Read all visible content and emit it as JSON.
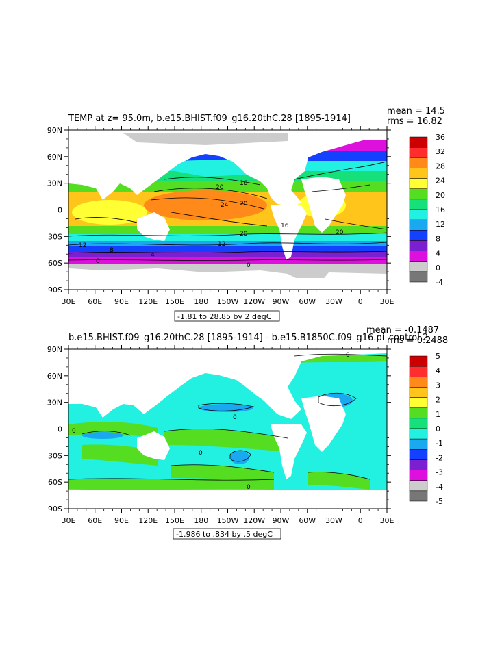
{
  "panels": [
    {
      "title": "TEMP at z=  95.0m, b.e15.BHIST.f09_g16.20thC.28 [1895-1914]",
      "mean_label": "mean = 14.5",
      "rms_label": "rms = 16.82",
      "range_label": "-1.81 to 28.85 by 2 degC",
      "contour_labels": [
        "20",
        "16",
        "24",
        "20",
        "16",
        "20",
        "20",
        "12",
        "12",
        "8",
        "4",
        "0",
        "0"
      ],
      "colorbar": {
        "labels": [
          "36",
          "32",
          "28",
          "24",
          "20",
          "16",
          "12",
          "8",
          "4",
          "0",
          "-4"
        ],
        "colors": [
          "#cc0000",
          "#ff2d2d",
          "#ff8a1a",
          "#ffc51a",
          "#ffff33",
          "#55dd22",
          "#16e07a",
          "#22f0e0",
          "#1aa8f0",
          "#1440ff",
          "#7a20d0",
          "#dd10dd",
          "#cccccc",
          "#777777"
        ]
      }
    },
    {
      "title": "b.e15.BHIST.f09_g16.20thC.28 [1895-1914] - b.e15.B1850C.f09_g16.pi_control.2",
      "mean_label": "mean = -0.1487",
      "rms_label": "rms = 0.2488",
      "range_label": "-1.986 to .834 by .5 degC",
      "contour_labels": [
        "0",
        "0",
        "0",
        "0",
        "0"
      ],
      "colorbar": {
        "labels": [
          "5",
          "4",
          "3",
          "2",
          "1",
          "0",
          "-1",
          "-2",
          "-3",
          "-4",
          "-5"
        ],
        "colors": [
          "#cc0000",
          "#ff2d2d",
          "#ff8a1a",
          "#ffc51a",
          "#ffff33",
          "#55dd22",
          "#16e07a",
          "#22f0e0",
          "#1aa8f0",
          "#1440ff",
          "#7a20d0",
          "#dd10dd",
          "#cccccc",
          "#777777"
        ]
      }
    }
  ],
  "axes": {
    "x_ticks": [
      "30E",
      "60E",
      "90E",
      "120E",
      "150E",
      "180",
      "150W",
      "120W",
      "90W",
      "60W",
      "30W",
      "0",
      "30E"
    ],
    "y_ticks": [
      "90N",
      "60N",
      "30N",
      "0",
      "30S",
      "60S",
      "90S"
    ]
  },
  "chart_data": [
    {
      "type": "heatmap",
      "title": "TEMP at z=  95.0m, b.e15.BHIST.f09_g16.20thC.28 [1895-1914]",
      "variable": "TEMP",
      "units": "degC",
      "depth": "95.0m",
      "mean": 14.5,
      "rms": 16.82,
      "data_min": -1.81,
      "data_max": 28.85,
      "contour_interval": 2,
      "colorbar_levels": [
        -4,
        0,
        4,
        8,
        12,
        16,
        20,
        24,
        28,
        32,
        36
      ],
      "x_range": [
        "30E",
        "30E"
      ],
      "y_range": [
        "90S",
        "90N"
      ]
    },
    {
      "type": "heatmap",
      "title": "b.e15.BHIST.f09_g16.20thC.28 [1895-1914] - b.e15.B1850C.f09_g16.pi_control.2",
      "variable": "TEMP difference",
      "units": "degC",
      "mean": -0.1487,
      "rms": 0.2488,
      "data_min": -1.986,
      "data_max": 0.834,
      "contour_interval": 0.5,
      "colorbar_levels": [
        -5,
        -4,
        -3,
        -2,
        -1,
        0,
        1,
        2,
        3,
        4,
        5
      ],
      "x_range": [
        "30E",
        "30E"
      ],
      "y_range": [
        "90S",
        "90N"
      ]
    }
  ]
}
